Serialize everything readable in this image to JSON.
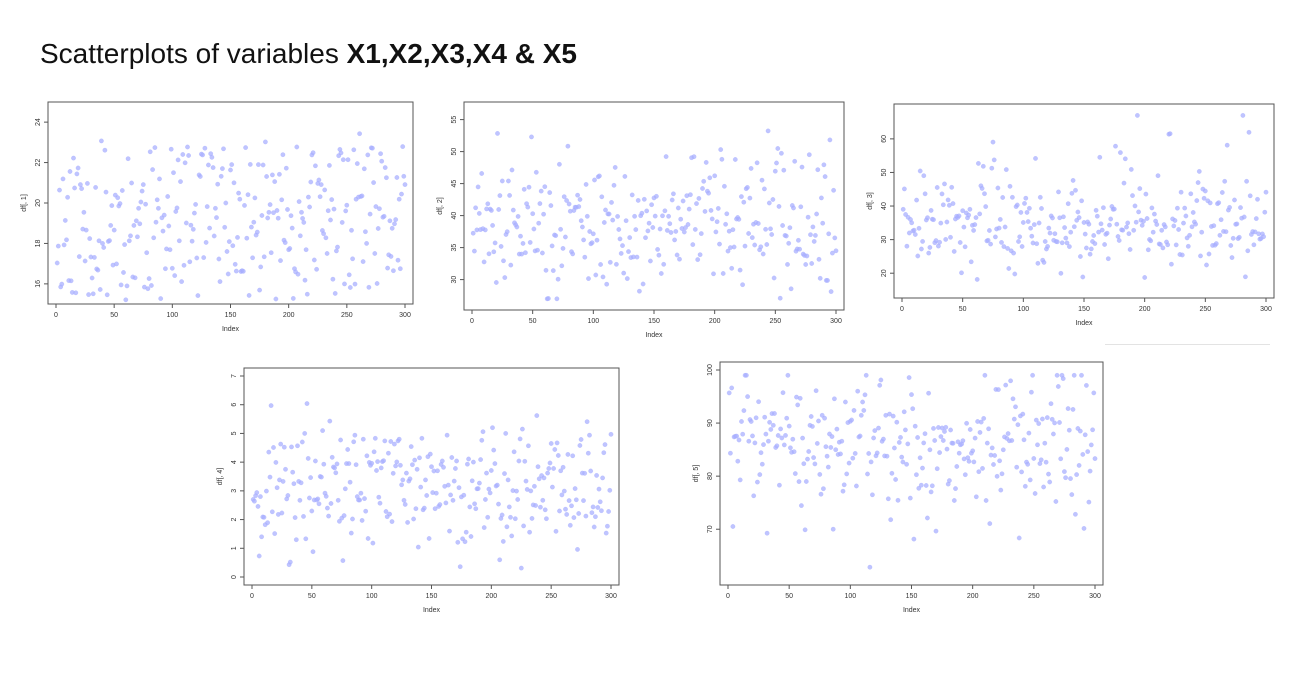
{
  "title": {
    "prefix": "Scatterplots of variables ",
    "vars": "X1,X2,X3,X4 & X5"
  },
  "colors": {
    "point": "#aab0ff",
    "axis": "#555555"
  },
  "chart_data": [
    {
      "type": "scatter",
      "id": "x1",
      "xlabel": "Index",
      "ylabel": "df[, 1]",
      "xlim": [
        0,
        300
      ],
      "ylim": [
        15.4,
        24.6
      ],
      "xticks": [
        0,
        50,
        100,
        150,
        200,
        250,
        300
      ],
      "yticks": [
        16,
        18,
        20,
        22,
        24
      ],
      "x": [],
      "y": []
    },
    {
      "type": "scatter",
      "id": "x2",
      "xlabel": "Index",
      "ylabel": "df[, 2]",
      "xlim": [
        0,
        300
      ],
      "ylim": [
        26.5,
        56.5
      ],
      "xticks": [
        0,
        50,
        100,
        150,
        200,
        250,
        300
      ],
      "yticks": [
        30,
        35,
        40,
        45,
        50,
        55
      ],
      "x": [],
      "y": []
    },
    {
      "type": "scatter",
      "id": "x3",
      "xlabel": "Index",
      "ylabel": "df[, 3]",
      "xlim": [
        0,
        300
      ],
      "ylim": [
        15,
        68
      ],
      "xticks": [
        0,
        50,
        100,
        150,
        200,
        250,
        300
      ],
      "yticks": [
        20,
        30,
        40,
        50,
        60
      ],
      "x": [],
      "y": []
    },
    {
      "type": "scatter",
      "id": "x4",
      "xlabel": "Index",
      "ylabel": "df[, 4]",
      "xlim": [
        0,
        300
      ],
      "ylim": [
        0,
        7
      ],
      "xticks": [
        0,
        50,
        100,
        150,
        200,
        250,
        300
      ],
      "yticks": [
        0,
        1,
        2,
        3,
        4,
        5,
        6,
        7
      ],
      "x": [],
      "y": []
    },
    {
      "type": "scatter",
      "id": "x5",
      "xlabel": "Index",
      "ylabel": "df[, 5]",
      "xlim": [
        0,
        300
      ],
      "ylim": [
        61,
        100
      ],
      "xticks": [
        0,
        50,
        100,
        150,
        200,
        250,
        300
      ],
      "yticks": [
        70,
        80,
        90,
        100
      ],
      "x": [],
      "y": []
    }
  ]
}
